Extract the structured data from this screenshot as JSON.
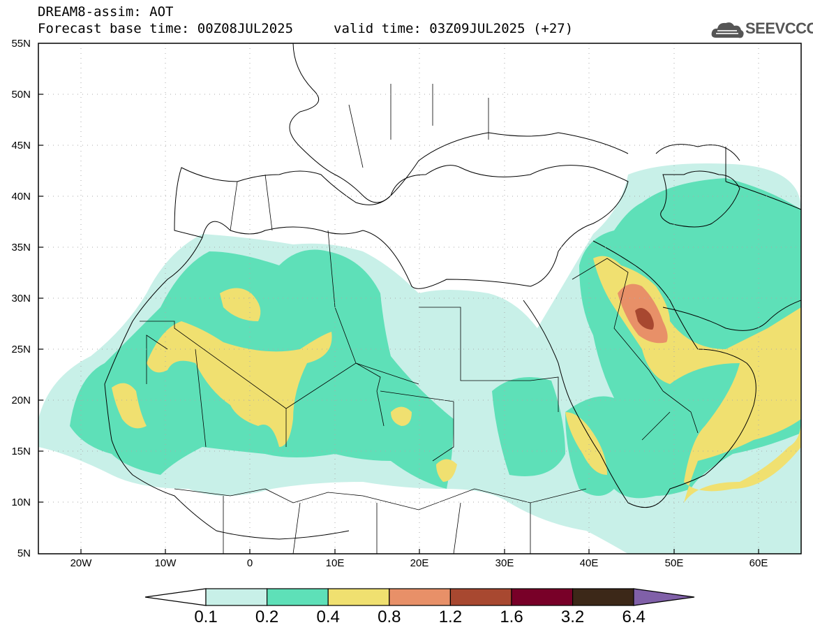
{
  "header": {
    "title": "DREAM8-assim: AOT",
    "base_time": "Forecast base time: 00Z08JUL2025",
    "valid_time": "valid time: 03Z09JUL2025 (+27)"
  },
  "logo": {
    "text": "SEEVCCC",
    "icon": "cloud-icon"
  },
  "map": {
    "lon_range": [
      -25,
      65
    ],
    "lat_range": [
      5,
      55
    ],
    "lat_labels": [
      "55N",
      "50N",
      "45N",
      "40N",
      "35N",
      "30N",
      "25N",
      "20N",
      "15N",
      "10N",
      "5N"
    ],
    "lon_labels": [
      "20W",
      "10W",
      "0",
      "10E",
      "20E",
      "30E",
      "40E",
      "50E",
      "60E"
    ],
    "grid": "dotted"
  },
  "colorbar": {
    "labels": [
      "0.1",
      "0.2",
      "0.4",
      "0.8",
      "1.2",
      "1.6",
      "3.2",
      "6.4"
    ],
    "colors": [
      "#c8f0e8",
      "#5ee0b8",
      "#f0e070",
      "#e89068",
      "#a84830",
      "#780028",
      "#3c2818",
      "#8060a8"
    ]
  }
}
